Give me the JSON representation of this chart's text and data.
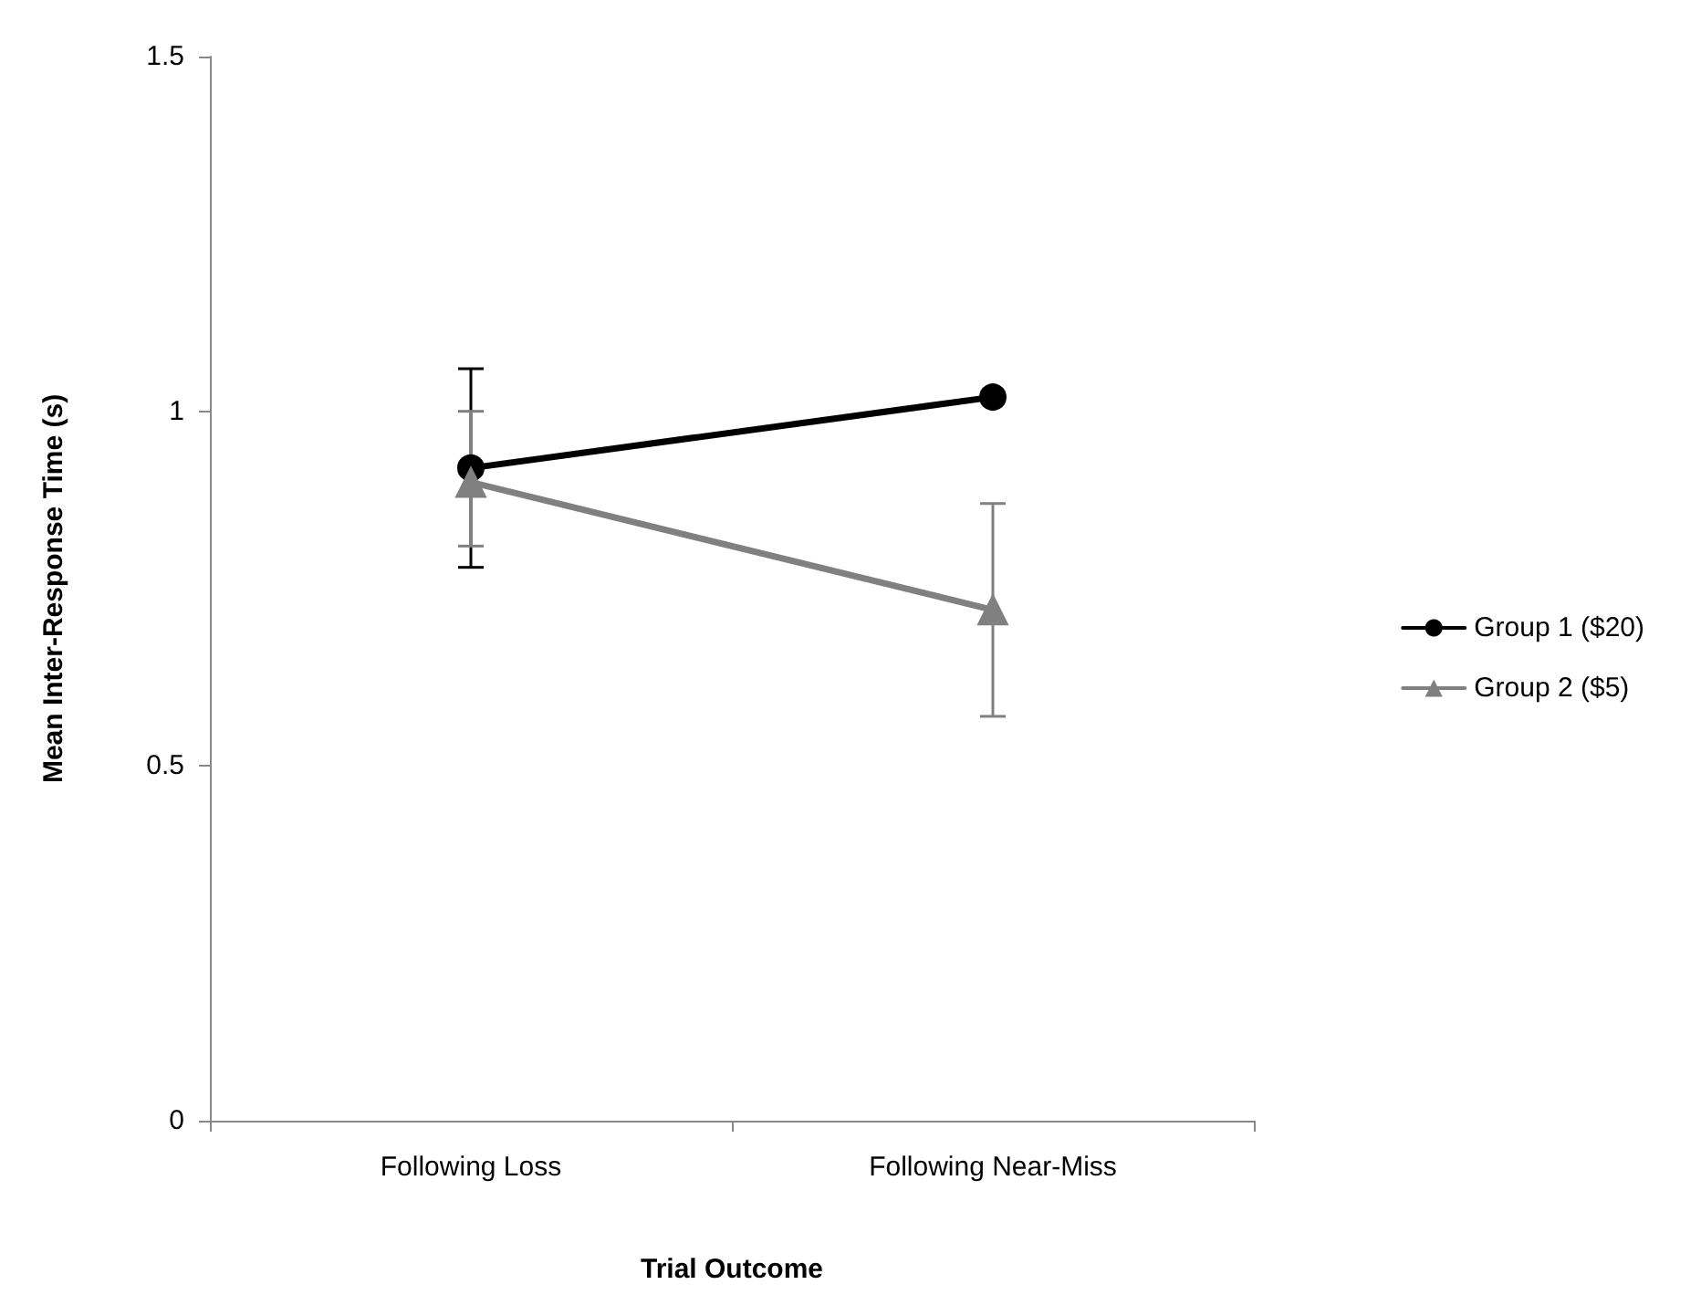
{
  "chart_data": {
    "type": "line",
    "xlabel": "Trial Outcome",
    "ylabel": "Mean Inter-Response Time (s)",
    "categories": [
      "Following Loss",
      "Following Near-Miss"
    ],
    "series": [
      {
        "name": "Group 1 ($20)",
        "color": "#000000",
        "marker": "circle",
        "values": [
          0.92,
          1.02
        ],
        "errors": [
          [
            0.78,
            1.06
          ],
          null
        ]
      },
      {
        "name": "Group 2 ($5)",
        "color": "#808080",
        "marker": "triangle",
        "values": [
          0.9,
          0.72
        ],
        "errors": [
          [
            0.81,
            1.0
          ],
          [
            0.57,
            0.87
          ]
        ]
      }
    ],
    "ylim": [
      0,
      1.5
    ],
    "yticks": [
      0,
      0.5,
      1,
      1.5
    ],
    "grid": false,
    "legend": "right",
    "line_style": "solid"
  }
}
